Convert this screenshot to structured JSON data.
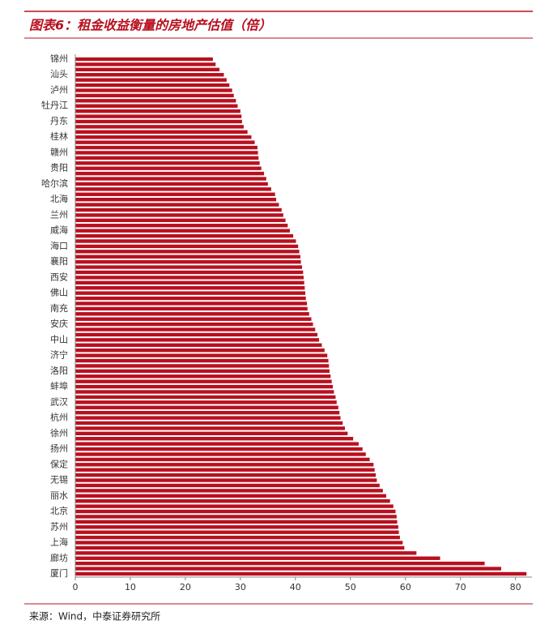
{
  "chart_data": {
    "type": "barh",
    "title": "图表6：租金收益衡量的房地产估值（倍）",
    "source": "来源：Wind，中泰证券研究所",
    "color": "#b8101f",
    "categories": [
      "锦州",
      null,
      null,
      "汕头",
      null,
      null,
      "泸州",
      null,
      null,
      "牡丹江",
      null,
      null,
      "丹东",
      null,
      null,
      "桂林",
      null,
      null,
      "赣州",
      null,
      null,
      "贵阳",
      null,
      null,
      "哈尔滨",
      null,
      null,
      "北海",
      null,
      null,
      "兰州",
      null,
      null,
      "威海",
      null,
      null,
      "海口",
      null,
      null,
      "襄阳",
      null,
      null,
      "西安",
      null,
      null,
      "佛山",
      null,
      null,
      "南充",
      null,
      null,
      "安庆",
      null,
      null,
      "中山",
      null,
      null,
      "济宁",
      null,
      null,
      "洛阳",
      null,
      null,
      "蚌埠",
      null,
      null,
      "武汉",
      null,
      null,
      "杭州",
      null,
      null,
      "徐州",
      null,
      null,
      "扬州",
      null,
      null,
      "保定",
      null,
      null,
      "无锡",
      null,
      null,
      "丽水",
      null,
      null,
      "北京",
      null,
      null,
      "苏州",
      null,
      null,
      "上海",
      null,
      null,
      "廊坊",
      null,
      null,
      "厦门"
    ],
    "values": [
      25.0,
      25.5,
      26.2,
      27.0,
      27.5,
      28.0,
      28.5,
      28.8,
      29.2,
      29.5,
      30.0,
      30.2,
      30.3,
      30.6,
      31.3,
      32.0,
      32.6,
      33.1,
      33.2,
      33.3,
      33.5,
      33.8,
      34.3,
      34.7,
      35.0,
      35.6,
      36.3,
      36.5,
      37.0,
      37.5,
      37.8,
      38.2,
      38.6,
      39.0,
      39.6,
      40.1,
      40.5,
      40.7,
      40.9,
      41.0,
      41.2,
      41.4,
      41.5,
      41.6,
      41.7,
      41.8,
      41.9,
      42.1,
      42.2,
      42.5,
      42.9,
      43.2,
      43.6,
      44.0,
      44.3,
      44.8,
      45.3,
      45.8,
      46.0,
      46.1,
      46.2,
      46.4,
      46.6,
      46.8,
      47.0,
      47.3,
      47.5,
      47.8,
      48.0,
      48.2,
      48.6,
      49.0,
      49.5,
      50.5,
      51.5,
      52.2,
      52.8,
      53.5,
      54.2,
      54.4,
      54.6,
      54.8,
      55.3,
      55.9,
      56.5,
      57.2,
      57.8,
      58.2,
      58.4,
      58.5,
      58.7,
      58.8,
      59.0,
      59.5,
      59.8,
      62.0,
      66.3,
      74.4,
      77.4,
      82.0
    ],
    "xlim": [
      0,
      83
    ],
    "xticks": [
      0,
      10,
      20,
      30,
      40,
      50,
      60,
      70,
      80
    ]
  }
}
